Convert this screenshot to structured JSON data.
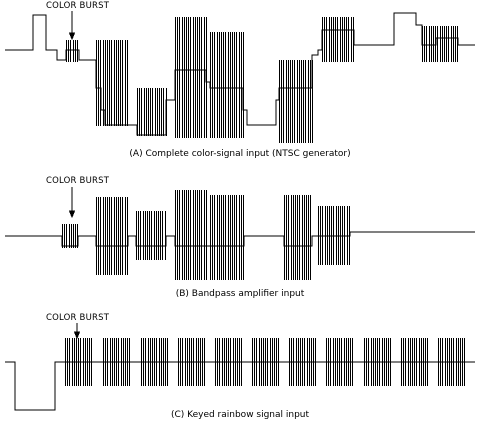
{
  "panels": [
    {
      "id": "a",
      "burst_label": "COLOR BURST",
      "caption": "(A) Complete color-signal input (NTSC generator)"
    },
    {
      "id": "b",
      "burst_label": "COLOR BURST",
      "caption": "(B) Bandpass amplifier input"
    },
    {
      "id": "c",
      "burst_label": "COLOR BURST",
      "caption": "(C) Keyed rainbow signal input"
    }
  ]
}
